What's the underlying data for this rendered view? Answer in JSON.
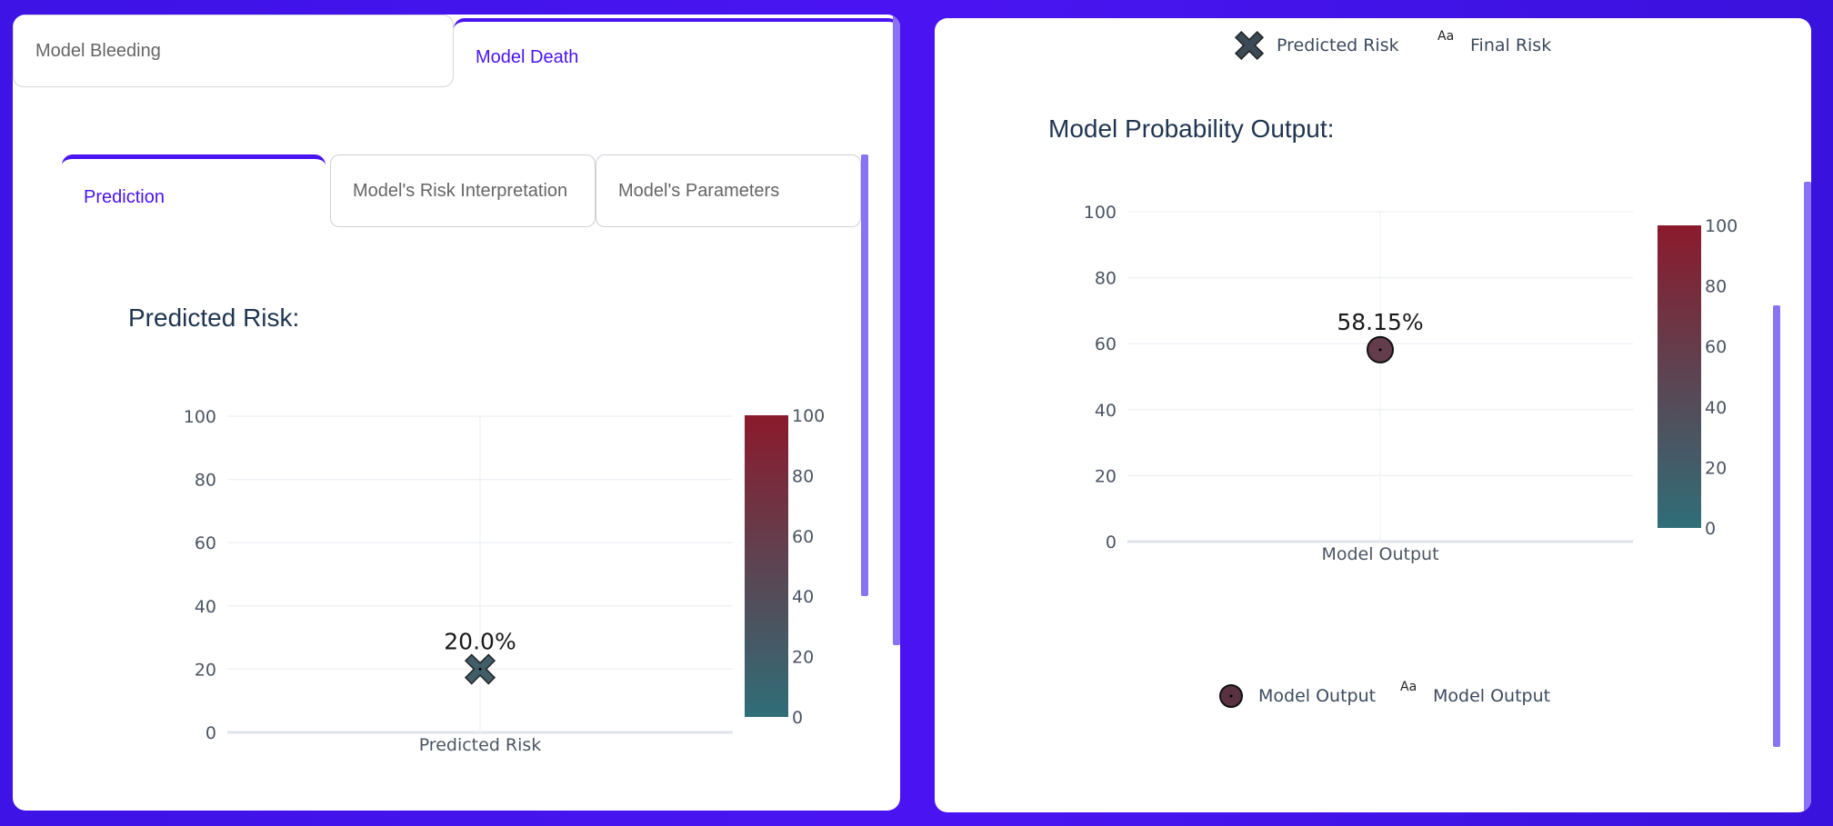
{
  "model_tabs": [
    {
      "label": "Model Bleeding",
      "active": false
    },
    {
      "label": "Model Death",
      "active": true
    }
  ],
  "sub_tabs": [
    {
      "label": "Prediction",
      "active": true
    },
    {
      "label": "Model's Risk Interpretation",
      "active": false
    },
    {
      "label": "Model's Parameters",
      "active": false
    }
  ],
  "left_chart": {
    "title": "Predicted Risk:"
  },
  "right_chart": {
    "title": "Model Probability Output:",
    "top_legend": [
      {
        "symbol": "x-icon",
        "label": "Predicted Risk"
      },
      {
        "symbol": "text-aa",
        "glyph": "Aa",
        "label": "Final Risk"
      }
    ],
    "bottom_legend": [
      {
        "symbol": "circle-icon",
        "label": "Model Output"
      },
      {
        "symbol": "text-aa",
        "glyph": "Aa",
        "label": "Model Output"
      }
    ]
  },
  "colors": {
    "accent": "#4a14f2",
    "scale_low": "#2f6e78",
    "scale_high": "#8b1a2c",
    "title_text": "#1f3550"
  },
  "chart_data": [
    {
      "type": "scatter",
      "categories": [
        "Predicted Risk"
      ],
      "values": [
        20.0
      ],
      "data_labels": [
        "20.0%"
      ],
      "marker": "x",
      "ylim": [
        0,
        100
      ],
      "yticks": [
        "0",
        "20",
        "40",
        "60",
        "80",
        "100"
      ],
      "colorbar": {
        "range": [
          0,
          100
        ],
        "ticks": [
          "0",
          "20",
          "40",
          "60",
          "80",
          "100"
        ]
      }
    },
    {
      "type": "scatter",
      "categories": [
        "Model Output"
      ],
      "values": [
        58.15
      ],
      "data_labels": [
        "58.15%"
      ],
      "marker": "circle",
      "ylim": [
        0,
        100
      ],
      "yticks": [
        "0",
        "20",
        "40",
        "60",
        "80",
        "100"
      ],
      "colorbar": {
        "range": [
          0,
          100
        ],
        "ticks": [
          "0",
          "20",
          "40",
          "60",
          "80",
          "100"
        ]
      }
    }
  ]
}
